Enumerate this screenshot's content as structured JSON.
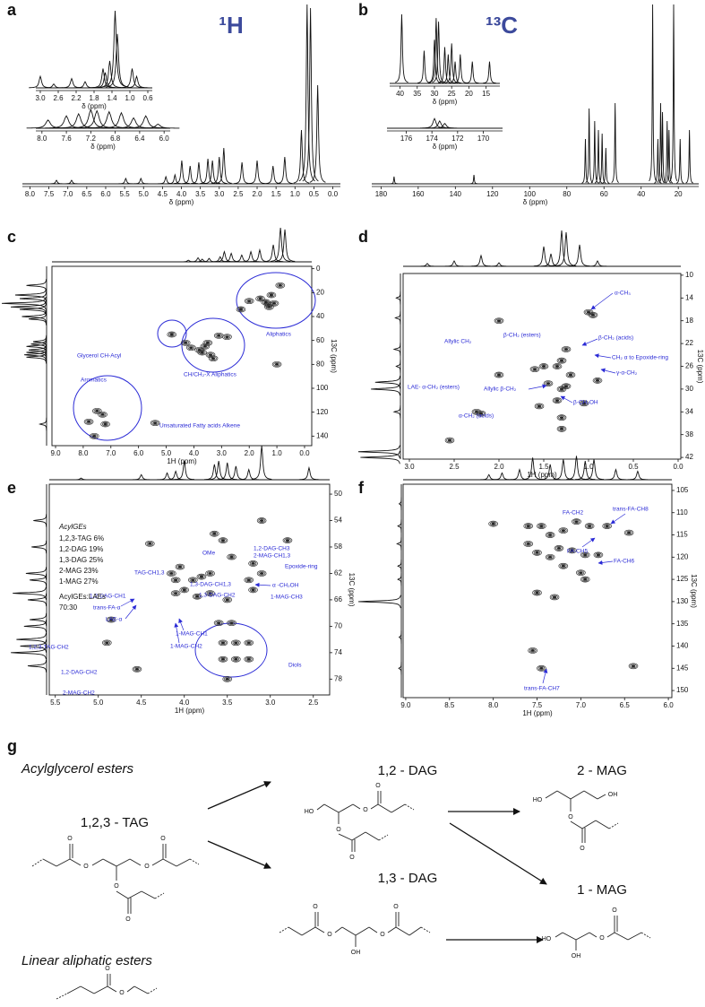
{
  "panels": [
    {
      "label": "a",
      "title": "¹H",
      "spectra": [
        {
          "xlabel": "δ (ppm)",
          "xlim": [
            8.2,
            -0.2
          ],
          "xticks": [
            {
              "value": 8,
              "label": "8.0"
            },
            7.5,
            {
              "value": 7,
              "label": "7.0"
            },
            6.5,
            {
              "value": 6,
              "label": "6.0"
            },
            5.5,
            {
              "value": 5,
              "label": "5.0"
            },
            4.5,
            {
              "value": 4,
              "label": "4.0"
            },
            3.5,
            {
              "value": 3,
              "label": "3.0"
            },
            2.5,
            {
              "value": 2,
              "label": "2.0"
            },
            1.5,
            {
              "value": 1,
              "label": "1.0"
            },
            0.5,
            {
              "value": 0,
              "label": "0.0"
            }
          ],
          "peaks": {
            "x": [
              0.68,
              0.59,
              0.4,
              0.83,
              1.27,
              1.58,
              2.0,
              2.4,
              2.88,
              3.0,
              3.18,
              3.3,
              3.54,
              3.77,
              3.99,
              4.17,
              4.41,
              5.07,
              5.47,
              6.9,
              7.3
            ],
            "height": [
              100,
              98,
              55,
              30,
              15,
              10,
              13,
              12,
              20,
              15,
              13,
              14,
              12,
              10,
              13,
              5,
              4,
              3,
              3,
              2,
              2
            ]
          }
        },
        {
          "xlabel": "δ (ppm)",
          "xlim": [
            3.1,
            0.5
          ],
          "xticks": [
            {
              "value": 3,
              "label": "3.0"
            },
            2.6,
            2.2,
            1.8,
            1.4,
            {
              "value": 1,
              "label": "1.0"
            },
            0.6
          ],
          "peaks": {
            "x": [
              3.0,
              2.7,
              2.3,
              2.0,
              1.6,
              1.55,
              1.45,
              1.33,
              1.28,
              0.95,
              0.85
            ],
            "height": [
              15,
              5,
              12,
              8,
              25,
              20,
              35,
              100,
              70,
              25,
              15
            ]
          }
        },
        {
          "xlabel": "δ (ppm)",
          "xlim": [
            8.1,
            5.9
          ],
          "xticks": [
            {
              "value": 8,
              "label": "8.0"
            },
            7.6,
            7.2,
            6.8,
            6.4,
            {
              "value": 6,
              "label": "6.0"
            }
          ],
          "peaks": {
            "x": [
              7.9,
              7.6,
              7.4,
              7.2,
              7.1,
              6.9,
              6.7,
              6.5,
              6.3,
              6.1
            ],
            "height": [
              40,
              60,
              70,
              90,
              85,
              80,
              75,
              50,
              60,
              20
            ]
          }
        }
      ]
    },
    {
      "label": "b",
      "title": "¹³C",
      "spectra": [
        {
          "xlabel": "δ (ppm)",
          "xlim": [
            185,
            9
          ],
          "xticks": [
            180,
            160,
            140,
            120,
            100,
            80,
            60,
            40,
            20
          ],
          "peaks": {
            "x": [
              33.8,
              22.5,
              29.5,
              28.5,
              26,
              25,
              31,
              14,
              19,
              70,
              68,
              65,
              63,
              61,
              59,
              54,
              173,
              130
            ],
            "height": [
              100,
              100,
              45,
              40,
              35,
              30,
              25,
              30,
              25,
              25,
              42,
              35,
              30,
              28,
              20,
              45,
              4,
              5
            ]
          }
        },
        {
          "xlabel": "δ (ppm)",
          "xlim": [
            43,
            11
          ],
          "xticks": [
            40,
            35,
            30,
            25,
            20,
            15
          ],
          "peaks": {
            "x": [
              39.5,
              33,
              30,
              29.5,
              28.8,
              27,
              26,
              25,
              24,
              22.5,
              19,
              14
            ],
            "height": [
              95,
              45,
              60,
              90,
              85,
              50,
              40,
              55,
              30,
              40,
              30,
              30
            ]
          }
        },
        {
          "xlabel": "δ (ppm)",
          "xlim": [
            177.5,
            168.5
          ],
          "xticks": [
            176,
            174,
            172,
            170
          ],
          "peaks": {
            "x": [
              173.8,
              173.4,
              173
            ],
            "height": [
              60,
              45,
              30
            ]
          }
        }
      ]
    },
    {
      "label": "c",
      "xlabel": "1H (ppm)",
      "ylabel": "13C (ppm)",
      "xlim": [
        9.13,
        -0.26
      ],
      "ylim": [
        -2,
        148
      ],
      "xticks": [
        {
          "value": 9,
          "label": "9.0"
        },
        {
          "value": 8,
          "label": "8.0"
        },
        {
          "value": 7,
          "label": "7.0"
        },
        {
          "value": 6,
          "label": "6.0"
        },
        {
          "value": 5,
          "label": "5.0"
        },
        {
          "value": 4,
          "label": "4.0"
        },
        {
          "value": 3,
          "label": "3.0"
        },
        {
          "value": 2,
          "label": "2.0"
        },
        {
          "value": 1,
          "label": "1.0"
        },
        {
          "value": 0,
          "label": "0.0"
        }
      ],
      "yticks": [
        0,
        20,
        40,
        60,
        80,
        100,
        120,
        140
      ],
      "top_peaks": {
        "x": [
          0.87,
          0.71,
          1.13,
          1.62,
          1.94,
          2.27,
          2.65,
          2.9,
          3.05,
          3.45,
          3.7,
          3.85,
          4.2
        ],
        "height": [
          100,
          95,
          50,
          35,
          30,
          20,
          25,
          30,
          15,
          10,
          8,
          12,
          5
        ]
      },
      "left_peaks": {
        "y": [
          14,
          22,
          25,
          29,
          32,
          34,
          40,
          42,
          61,
          63,
          65,
          68,
          70,
          72,
          74,
          130
        ],
        "height": [
          45,
          70,
          60,
          100,
          80,
          60,
          55,
          40,
          30,
          35,
          45,
          40,
          45,
          50,
          45,
          15
        ]
      },
      "cross_peaks": {
        "x": [
          1.3,
          1.28,
          1.2,
          0.88,
          2.0,
          2.3,
          1.6,
          1.1,
          1.4,
          3.5,
          3.6,
          3.7,
          3.4,
          3.8,
          4.1,
          4.3,
          3.3,
          4.8,
          2.8,
          3.1,
          7.5,
          7.3,
          7.8,
          7.2,
          5.4,
          1.0,
          7.6
        ],
        "y": [
          30,
          32,
          22,
          14,
          27,
          34,
          25,
          29,
          28,
          62,
          65,
          70,
          72,
          68,
          66,
          62,
          75,
          55,
          57,
          56,
          119,
          122,
          128,
          130,
          129,
          80,
          140
        ]
      },
      "annotations": [
        "Aliphatics",
        "Glycerol CH-Acyl",
        "CH/CH₂-X Aliphatics",
        "Aromatics",
        "Unsaturated Fatty acids Alkene"
      ]
    },
    {
      "label": "d",
      "xlabel": "1H (ppm)",
      "ylabel": "13C (ppm)",
      "xlim": [
        3.07,
        -0.03
      ],
      "ylim": [
        9.7,
        42.3
      ],
      "xticks": [
        {
          "value": 3,
          "label": "3.0"
        },
        2.5,
        {
          "value": 2,
          "label": "2.0"
        },
        1.5,
        {
          "value": 1,
          "label": "1.0"
        },
        0.5,
        {
          "value": 0,
          "label": "0.0"
        }
      ],
      "yticks": [
        10,
        14,
        18,
        22,
        26,
        30,
        34,
        38,
        42
      ],
      "top_peaks": {
        "x": [
          1.3,
          1.25,
          1.1,
          1.5,
          2.2,
          2.5,
          2.0,
          0.9,
          1.42,
          2.8
        ],
        "height": [
          100,
          95,
          60,
          55,
          30,
          15,
          10,
          15,
          35,
          8
        ]
      },
      "left_peaks": {
        "y": [
          14,
          17.5,
          23,
          26,
          28.8,
          30,
          34,
          41,
          42
        ],
        "height": [
          10,
          12,
          15,
          10,
          60,
          70,
          15,
          100,
          95
        ]
      },
      "cross_peaks": {
        "x": [
          1.0,
          0.95,
          2.0,
          1.25,
          1.3,
          1.35,
          1.5,
          1.2,
          1.6,
          2.0,
          1.25,
          1.3,
          1.45,
          1.35,
          1.55,
          2.25,
          2.2,
          1.3,
          2.55,
          0.9,
          1.05,
          1.3
        ],
        "y": [
          16.5,
          17,
          18,
          23,
          25,
          26,
          26,
          27.5,
          26.5,
          27.5,
          29.5,
          30,
          29,
          32,
          33,
          34,
          34.3,
          35,
          39,
          28.5,
          32.5,
          37
        ]
      },
      "annotations": [
        "α-CH₃",
        "β-CH₂ (esters)",
        "β-CH₂ (acids)",
        "Allylic CH₂",
        "CH₂ α to Epoxide-ring",
        "γ-α-CH₂",
        "Allylic β-CH₂",
        "LAE- α-CH₂ (esters)",
        "β-CH₂OH",
        "α-CH₂ (acids)"
      ]
    },
    {
      "label": "e",
      "xlabel": "1H (ppm)",
      "ylabel": "13C (ppm)",
      "xlim": [
        5.57,
        2.31
      ],
      "ylim": [
        48.5,
        80.4
      ],
      "xticks": [
        5.5,
        {
          "value": 5,
          "label": "5.0"
        },
        4.5,
        {
          "value": 4,
          "label": "4.0"
        },
        3.5,
        {
          "value": 3,
          "label": "3.0"
        },
        2.5
      ],
      "yticks": [
        50,
        54,
        58,
        62,
        66,
        70,
        74,
        78
      ],
      "top_peaks": {
        "x": [
          3.1,
          4.0,
          3.6,
          3.5,
          3.65,
          3.4,
          2.55,
          4.5,
          4.2,
          3.25,
          4.1,
          5.2
        ],
        "height": [
          100,
          55,
          55,
          50,
          45,
          40,
          35,
          15,
          20,
          30,
          25,
          5
        ]
      },
      "left_peaks": {
        "y": [
          54,
          58,
          62,
          63,
          65,
          66,
          69,
          70,
          72,
          73,
          74,
          76
        ],
        "height": [
          35,
          40,
          55,
          45,
          90,
          50,
          45,
          60,
          80,
          70,
          95,
          50
        ]
      },
      "cross_peaks": {
        "x": [
          3.1,
          2.8,
          3.65,
          3.55,
          4.4,
          3.45,
          3.2,
          3.25,
          3.1,
          3.2,
          4.05,
          4.15,
          4.1,
          3.9,
          3.8,
          3.7,
          4.0,
          4.1,
          3.85,
          3.7,
          3.5,
          3.45,
          3.6,
          3.55,
          3.4,
          3.25,
          3.55,
          3.4,
          3.25,
          4.85,
          4.9,
          4.55,
          3.5
        ],
        "y": [
          54,
          57,
          56,
          57,
          57.5,
          59.5,
          60.5,
          63,
          62,
          64.5,
          61,
          62,
          63,
          63,
          62.5,
          62,
          64.5,
          65,
          65.5,
          65,
          66,
          69.5,
          69.5,
          72.5,
          72.5,
          72.5,
          75,
          75,
          75,
          69,
          72.5,
          76.5,
          78
        ]
      },
      "notes": [
        "AcylGEs",
        "1,2,3-TAG 6%",
        "1,2-DAG 19%",
        "1,3-DAG 25%",
        "2-MAG 23%",
        "1-MAG 27%",
        "AcylGEs:LAEs",
        "70:30"
      ],
      "annotations": [
        "OMe",
        "1,2-DAG-CH3",
        "2-MAG-CH1,3",
        "Epoxide-ring",
        "TAG-CH1,3",
        "1,3-DAG-CH1,3",
        "α -CH₂OH",
        "1,2-DAG-CH1",
        "1,3-DAG-CH2",
        "1-MAG-CH3",
        "trans-FA-α",
        "LAE-α",
        "1-MAG-CH1",
        "1-MAG-CH2",
        "1,2,3-TAG-CH2",
        "1,2-DAG-CH2",
        "2-MAG-CH2",
        "Diols"
      ]
    },
    {
      "label": "f",
      "xlabel": "1H (ppm)",
      "ylabel": "13C (ppm)",
      "xlim": [
        9.03,
        5.96
      ],
      "ylim": [
        103.6,
        151.6
      ],
      "xticks": [
        {
          "value": 9,
          "label": "9.0"
        },
        8.5,
        {
          "value": 8,
          "label": "8.0"
        },
        7.5,
        {
          "value": 7,
          "label": "7.0"
        },
        6.5,
        {
          "value": 6,
          "label": "6.0"
        }
      ],
      "yticks": [
        105,
        110,
        115,
        120,
        125,
        130,
        135,
        140,
        145,
        150
      ],
      "top_peaks": {
        "x": [
          7.55,
          7.2,
          7.05,
          6.85,
          7.35,
          6.6,
          6.35,
          7.9,
          8.05,
          7.7,
          6.95
        ],
        "height": [
          65,
          60,
          70,
          60,
          45,
          30,
          25,
          20,
          15,
          30,
          55
        ]
      },
      "left_peaks": {
        "y": [
          108,
          113,
          117,
          122,
          125,
          130,
          138,
          145
        ],
        "height": [
          5,
          8,
          10,
          8,
          8,
          100,
          5,
          6
        ]
      },
      "cross_peaks": {
        "x": [
          8.0,
          7.6,
          7.45,
          7.35,
          7.2,
          7.05,
          6.9,
          6.7,
          6.45,
          7.6,
          7.5,
          7.35,
          7.25,
          7.1,
          6.95,
          6.8,
          7.0,
          6.95,
          7.2,
          7.3,
          7.5,
          7.55,
          7.45,
          6.4
        ],
        "y": [
          112.5,
          113,
          113,
          115,
          114,
          112,
          113,
          113,
          114.5,
          117,
          119,
          120,
          118,
          118.5,
          119.5,
          119.5,
          123.5,
          125,
          122,
          129,
          128,
          141,
          145,
          144.5
        ]
      },
      "annotations": [
        "FA-CH2",
        "trans-FA-CH8",
        "FA-CH5",
        "FA-CH6",
        "trans-FA-CH7"
      ]
    }
  ],
  "scheme": {
    "label": "g",
    "headings": [
      "Acylglycerol esters",
      "Linear aliphatic esters"
    ],
    "structures": [
      {
        "name": "1,2,3 - TAG",
        "atoms": [
          "O",
          "O",
          "O",
          "O",
          "O",
          "O"
        ]
      },
      {
        "name": "1,2 - DAG",
        "atoms": [
          "HO",
          "O",
          "O",
          "O",
          "O"
        ]
      },
      {
        "name": "2 - MAG",
        "atoms": [
          "HO",
          "OH",
          "O",
          "O"
        ]
      },
      {
        "name": "1,3 - DAG",
        "atoms": [
          "O",
          "O",
          "O",
          "O",
          "OH"
        ]
      },
      {
        "name": "1 - MAG",
        "atoms": [
          "HO",
          "O",
          "O",
          "OH"
        ]
      },
      {
        "atoms": [
          "O",
          "O"
        ]
      }
    ]
  }
}
